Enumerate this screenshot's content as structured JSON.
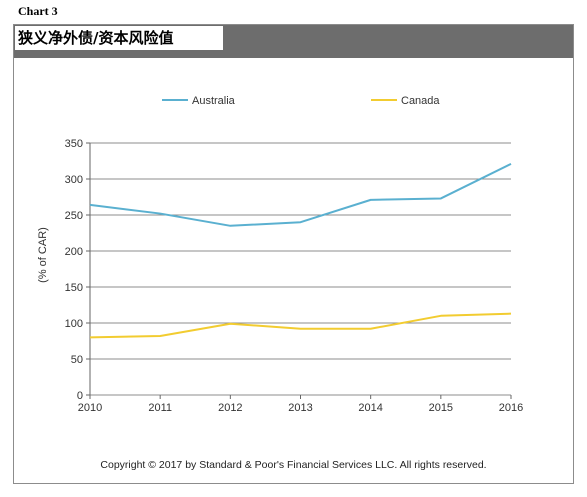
{
  "header": {
    "chart_label": "Chart 3"
  },
  "footer": {
    "copyright": "Copyright © 2017 by Standard & Poor's Financial Services LLC. All rights reserved."
  },
  "colors": {
    "australia": "#5ab0d0",
    "canada": "#f2cc30",
    "grid": "#8c8c8c",
    "title_band": "#6d6d6d"
  },
  "chart_data": {
    "type": "line",
    "title": "狭义净外债/资本风险值",
    "xlabel": "",
    "ylabel": "(% of CAR)",
    "x": [
      "2010",
      "2011",
      "2012",
      "2013",
      "2014",
      "2015",
      "2016"
    ],
    "ylim": [
      0,
      350
    ],
    "yticks": [
      0,
      50,
      100,
      150,
      200,
      250,
      300,
      350
    ],
    "grid": true,
    "legend_position": "top",
    "series": [
      {
        "name": "Australia",
        "values": [
          264,
          252,
          235,
          240,
          271,
          273,
          321
        ]
      },
      {
        "name": "Canada",
        "values": [
          80,
          82,
          99,
          92,
          92,
          110,
          113
        ]
      }
    ]
  }
}
